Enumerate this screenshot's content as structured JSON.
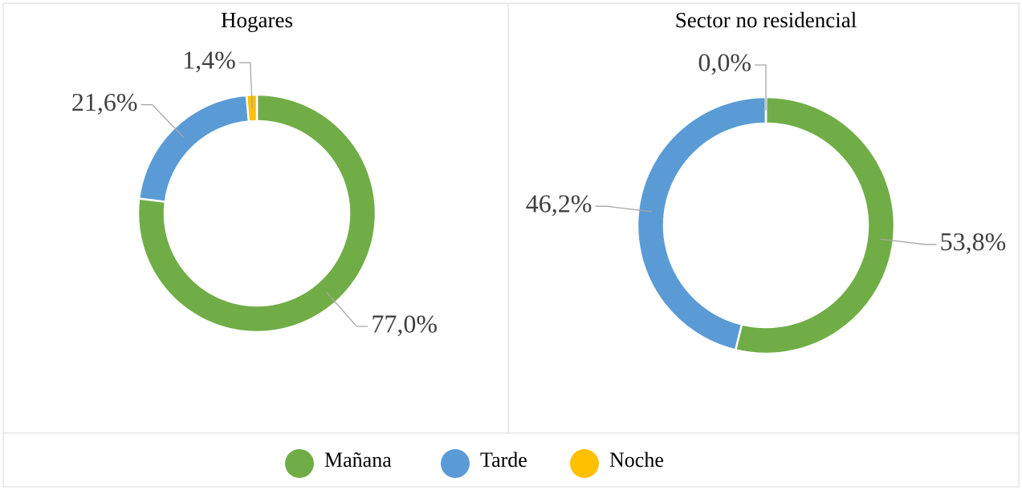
{
  "chart_data": [
    {
      "type": "donut",
      "title": "Hogares",
      "categories": [
        "Mañana",
        "Tarde",
        "Noche"
      ],
      "values": [
        77.0,
        21.6,
        1.4
      ],
      "value_labels": [
        "77,0%",
        "21,6%",
        "1,4%"
      ],
      "colors": [
        "#70ad47",
        "#5b9bd5",
        "#ffc000"
      ]
    },
    {
      "type": "donut",
      "title": "Sector no residencial",
      "categories": [
        "Mañana",
        "Tarde",
        "Noche"
      ],
      "values": [
        53.8,
        46.2,
        0.0
      ],
      "value_labels": [
        "53,8%",
        "46,2%",
        "0,0%"
      ],
      "colors": [
        "#70ad47",
        "#5b9bd5",
        "#ffc000"
      ]
    }
  ]
}
